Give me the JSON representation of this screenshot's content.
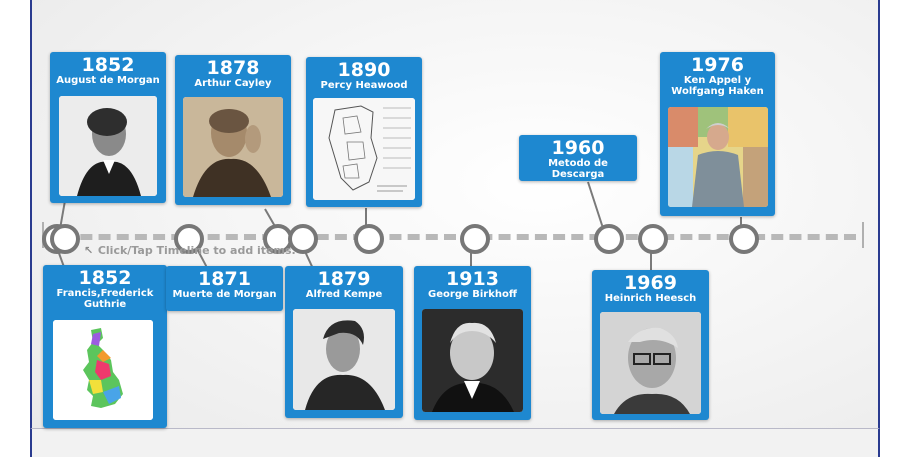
{
  "hint": "Click/Tap Timeline to add items.",
  "events": [
    {
      "year": "1852",
      "label": "August de Morgan",
      "image": "portrait-photo"
    },
    {
      "year": "1852",
      "label": "Francis,Frederick Guthrie",
      "image": "colored-map-of-britain"
    },
    {
      "year": "1878",
      "label": "Arthur Cayley",
      "image": "sepia-portrait-photo"
    },
    {
      "year": "1871",
      "label": "Muerte de Morgan"
    },
    {
      "year": "1890",
      "label": "Percy Heawood",
      "image": "hand-drawn-map-sketch"
    },
    {
      "year": "1879",
      "label": "Alfred Kempe",
      "image": "portrait-photo"
    },
    {
      "year": "1913",
      "label": "George Birkhoff",
      "image": "portrait-photo"
    },
    {
      "year": "1960",
      "label": "Metodo de Descarga"
    },
    {
      "year": "1969",
      "label": "Heinrich Heesch",
      "image": "portrait-photo"
    },
    {
      "year": "1976",
      "label": "Ken Appel y Wolfgang Haken",
      "image": "photo-with-map-background"
    }
  ],
  "colors": {
    "card": "#1e88d0",
    "frame": "#2a3b8f",
    "timeline": "#b8b8b8"
  }
}
